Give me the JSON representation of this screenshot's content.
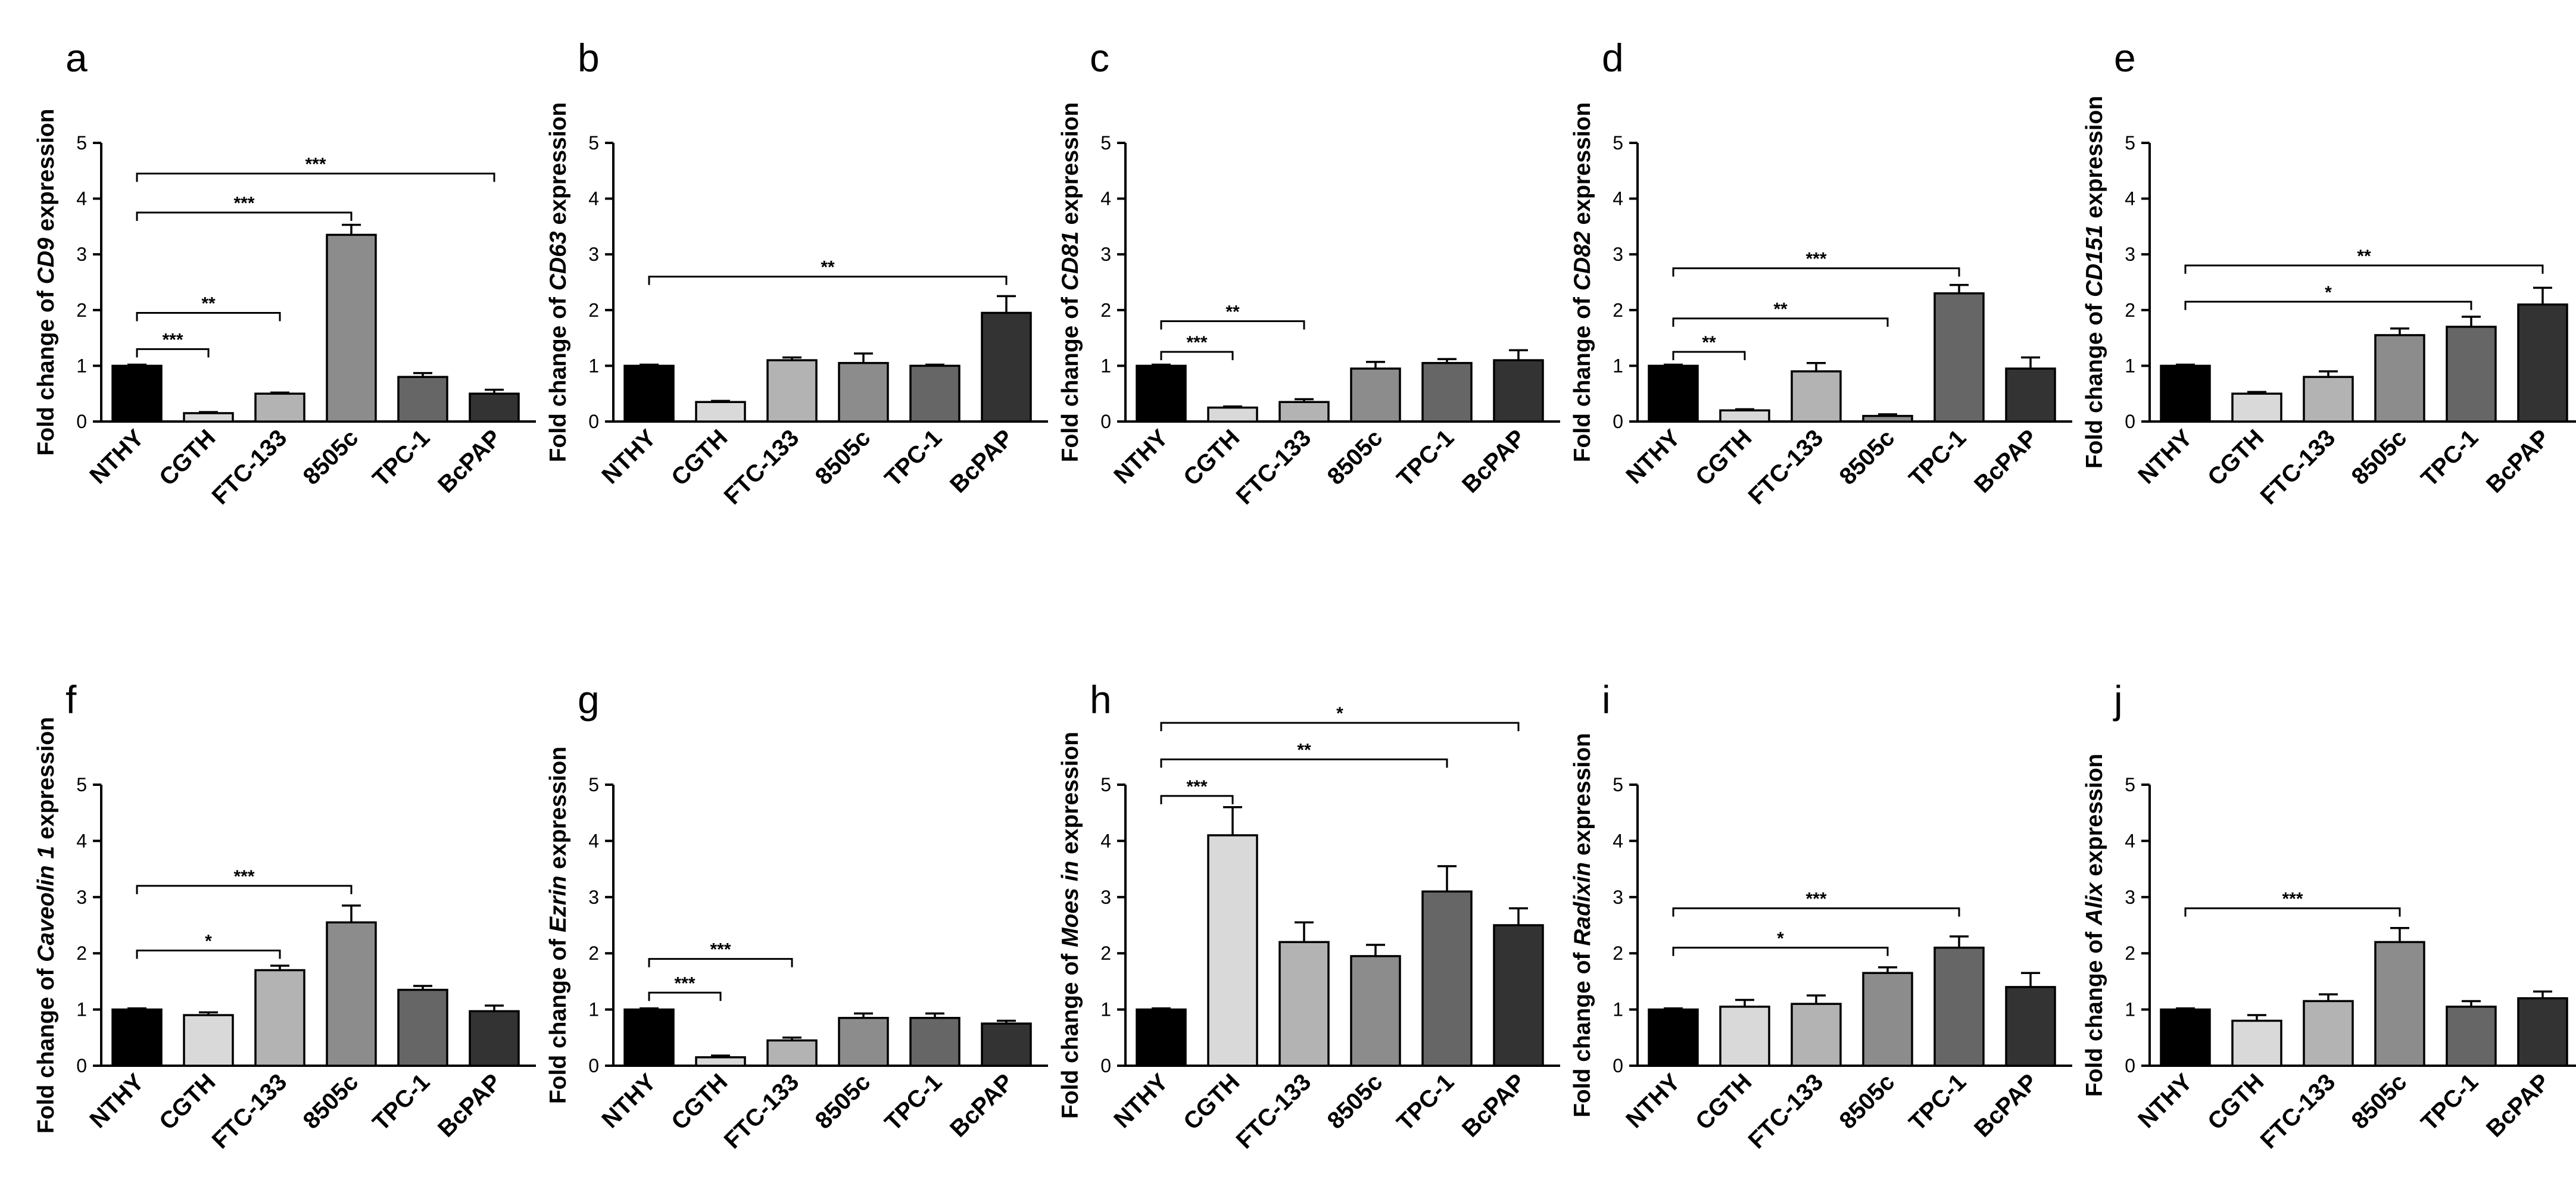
{
  "figure": {
    "colors": [
      "#000000",
      "#d9d9d9",
      "#b3b3b3",
      "#8c8c8c",
      "#666666",
      "#333333"
    ]
  },
  "chart_data": [
    {
      "type": "bar",
      "panel": "a",
      "ylabel_prefix": "Fold change of ",
      "ylabel_gene": "CD9",
      "ylabel_suffix": " expression",
      "categories": [
        "NTHY",
        "CGTH",
        "FTC-133",
        "8505c",
        "TPC-1",
        "BcPAP"
      ],
      "values": [
        1.0,
        0.15,
        0.5,
        3.35,
        0.8,
        0.5
      ],
      "errors": [
        0.02,
        0.02,
        0.02,
        0.18,
        0.07,
        0.07
      ],
      "ylim": [
        0,
        5
      ],
      "yticks": [
        "0",
        "1",
        "2",
        "3",
        "4",
        "5"
      ],
      "comparisons": [
        {
          "from": 0,
          "to": 1,
          "y": 1.3,
          "label": "***"
        },
        {
          "from": 0,
          "to": 2,
          "y": 1.95,
          "label": "**"
        },
        {
          "from": 0,
          "to": 3,
          "y": 3.75,
          "label": "***"
        },
        {
          "from": 0,
          "to": 5,
          "y": 4.45,
          "label": "***"
        }
      ]
    },
    {
      "type": "bar",
      "panel": "b",
      "ylabel_prefix": "Fold change of ",
      "ylabel_gene": "CD63",
      "ylabel_suffix": " expression",
      "categories": [
        "NTHY",
        "CGTH",
        "FTC-133",
        "8505c",
        "TPC-1",
        "BcPAP"
      ],
      "values": [
        1.0,
        0.35,
        1.1,
        1.05,
        1.0,
        1.95
      ],
      "errors": [
        0.02,
        0.02,
        0.05,
        0.17,
        0.02,
        0.3
      ],
      "ylim": [
        0,
        5
      ],
      "yticks": [
        "0",
        "1",
        "2",
        "3",
        "4",
        "5"
      ],
      "comparisons": [
        {
          "from": 0,
          "to": 5,
          "y": 2.6,
          "label": "**"
        }
      ]
    },
    {
      "type": "bar",
      "panel": "c",
      "ylabel_prefix": "Fold change of ",
      "ylabel_gene": "CD81",
      "ylabel_suffix": " expression",
      "categories": [
        "NTHY",
        "CGTH",
        "FTC-133",
        "8505c",
        "TPC-1",
        "BcPAP"
      ],
      "values": [
        1.0,
        0.25,
        0.35,
        0.95,
        1.05,
        1.1
      ],
      "errors": [
        0.02,
        0.02,
        0.05,
        0.12,
        0.07,
        0.18
      ],
      "ylim": [
        0,
        5
      ],
      "yticks": [
        "0",
        "1",
        "2",
        "3",
        "4",
        "5"
      ],
      "comparisons": [
        {
          "from": 0,
          "to": 1,
          "y": 1.25,
          "label": "***"
        },
        {
          "from": 0,
          "to": 2,
          "y": 1.8,
          "label": "**"
        }
      ]
    },
    {
      "type": "bar",
      "panel": "d",
      "ylabel_prefix": "Fold change of ",
      "ylabel_gene": "CD82",
      "ylabel_suffix": " expression",
      "categories": [
        "NTHY",
        "CGTH",
        "FTC-133",
        "8505c",
        "TPC-1",
        "BcPAP"
      ],
      "values": [
        1.0,
        0.2,
        0.9,
        0.1,
        2.3,
        0.95
      ],
      "errors": [
        0.02,
        0.02,
        0.15,
        0.03,
        0.15,
        0.2
      ],
      "ylim": [
        0,
        5
      ],
      "yticks": [
        "0",
        "1",
        "2",
        "3",
        "4",
        "5"
      ],
      "comparisons": [
        {
          "from": 0,
          "to": 1,
          "y": 1.25,
          "label": "**"
        },
        {
          "from": 0,
          "to": 3,
          "y": 1.85,
          "label": "**"
        },
        {
          "from": 0,
          "to": 4,
          "y": 2.75,
          "label": "***"
        }
      ]
    },
    {
      "type": "bar",
      "panel": "e",
      "ylabel_prefix": "Fold change of ",
      "ylabel_gene": "CD151",
      "ylabel_suffix": " expression",
      "categories": [
        "NTHY",
        "CGTH",
        "FTC-133",
        "8505c",
        "TPC-1",
        "BcPAP"
      ],
      "values": [
        1.0,
        0.5,
        0.8,
        1.55,
        1.7,
        2.1
      ],
      "errors": [
        0.02,
        0.03,
        0.1,
        0.12,
        0.18,
        0.3
      ],
      "ylim": [
        0,
        5
      ],
      "yticks": [
        "0",
        "1",
        "2",
        "3",
        "4",
        "5"
      ],
      "comparisons": [
        {
          "from": 0,
          "to": 4,
          "y": 2.15,
          "label": "*"
        },
        {
          "from": 0,
          "to": 5,
          "y": 2.8,
          "label": "**"
        }
      ]
    },
    {
      "type": "bar",
      "panel": "f",
      "ylabel_prefix": "Fold change of ",
      "ylabel_gene": "Caveolin 1",
      "ylabel_suffix": " expression",
      "categories": [
        "NTHY",
        "CGTH",
        "FTC-133",
        "8505c",
        "TPC-1",
        "BcPAP"
      ],
      "values": [
        1.0,
        0.9,
        1.7,
        2.55,
        1.35,
        0.97
      ],
      "errors": [
        0.02,
        0.05,
        0.08,
        0.3,
        0.07,
        0.1
      ],
      "ylim": [
        0,
        5
      ],
      "yticks": [
        "0",
        "1",
        "2",
        "3",
        "4",
        "5"
      ],
      "comparisons": [
        {
          "from": 0,
          "to": 2,
          "y": 2.05,
          "label": "*"
        },
        {
          "from": 0,
          "to": 3,
          "y": 3.2,
          "label": "***"
        }
      ]
    },
    {
      "type": "bar",
      "panel": "g",
      "ylabel_prefix": "Fold change of ",
      "ylabel_gene": "Ezrin",
      "ylabel_suffix": " expression",
      "categories": [
        "NTHY",
        "CGTH",
        "FTC-133",
        "8505c",
        "TPC-1",
        "BcPAP"
      ],
      "values": [
        1.0,
        0.15,
        0.45,
        0.85,
        0.85,
        0.75
      ],
      "errors": [
        0.02,
        0.03,
        0.05,
        0.08,
        0.08,
        0.05
      ],
      "ylim": [
        0,
        5
      ],
      "yticks": [
        "0",
        "1",
        "2",
        "3",
        "4",
        "5"
      ],
      "comparisons": [
        {
          "from": 0,
          "to": 1,
          "y": 1.3,
          "label": "***"
        },
        {
          "from": 0,
          "to": 2,
          "y": 1.9,
          "label": "***"
        }
      ]
    },
    {
      "type": "bar",
      "panel": "h",
      "ylabel_prefix": "Fold change of ",
      "ylabel_gene": "Moes in",
      "ylabel_suffix": " expression",
      "categories": [
        "NTHY",
        "CGTH",
        "FTC-133",
        "8505c",
        "TPC-1",
        "BcPAP"
      ],
      "values": [
        1.0,
        4.1,
        2.2,
        1.95,
        3.1,
        2.5
      ],
      "errors": [
        0.02,
        0.5,
        0.35,
        0.2,
        0.45,
        0.3
      ],
      "ylim": [
        0,
        5
      ],
      "yticks": [
        "0",
        "1",
        "2",
        "3",
        "4",
        "5"
      ],
      "comparisons": [
        {
          "from": 0,
          "to": 1,
          "y": 4.8,
          "label": "***"
        },
        {
          "from": 0,
          "to": 4,
          "y": 5.45,
          "label": "**"
        },
        {
          "from": 0,
          "to": 5,
          "y": 6.1,
          "label": "*"
        }
      ]
    },
    {
      "type": "bar",
      "panel": "i",
      "ylabel_prefix": "Fold change of ",
      "ylabel_gene": "Radixin",
      "ylabel_suffix": " expression",
      "categories": [
        "NTHY",
        "CGTH",
        "FTC-133",
        "8505c",
        "TPC-1",
        "BcPAP"
      ],
      "values": [
        1.0,
        1.05,
        1.1,
        1.65,
        2.1,
        1.4
      ],
      "errors": [
        0.02,
        0.12,
        0.15,
        0.1,
        0.2,
        0.25
      ],
      "ylim": [
        0,
        5
      ],
      "yticks": [
        "0",
        "1",
        "2",
        "3",
        "4",
        "5"
      ],
      "comparisons": [
        {
          "from": 0,
          "to": 3,
          "y": 2.1,
          "label": "*"
        },
        {
          "from": 0,
          "to": 4,
          "y": 2.8,
          "label": "***"
        }
      ]
    },
    {
      "type": "bar",
      "panel": "j",
      "ylabel_prefix": "Fold change of ",
      "ylabel_gene": "Alix",
      "ylabel_suffix": " expression",
      "categories": [
        "NTHY",
        "CGTH",
        "FTC-133",
        "8505c",
        "TPC-1",
        "BcPAP"
      ],
      "values": [
        1.0,
        0.8,
        1.15,
        2.2,
        1.05,
        1.2
      ],
      "errors": [
        0.02,
        0.1,
        0.12,
        0.25,
        0.1,
        0.12
      ],
      "ylim": [
        0,
        5
      ],
      "yticks": [
        "0",
        "1",
        "2",
        "3",
        "4",
        "5"
      ],
      "comparisons": [
        {
          "from": 0,
          "to": 3,
          "y": 2.8,
          "label": "***"
        }
      ]
    }
  ]
}
